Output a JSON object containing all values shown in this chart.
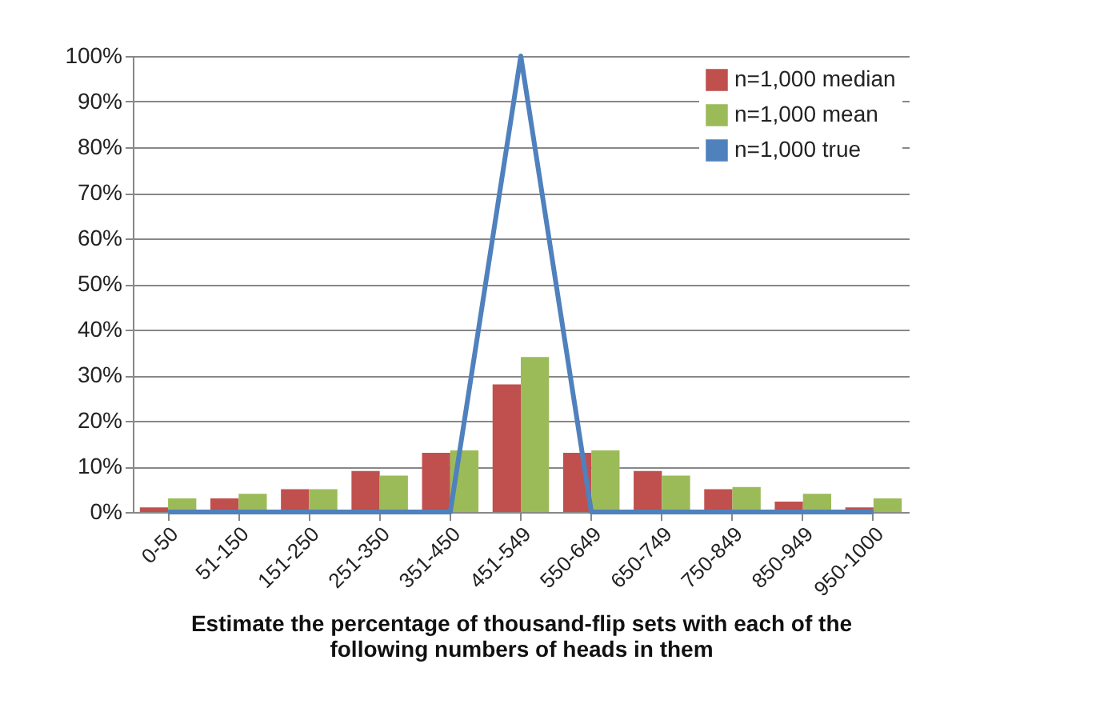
{
  "chart_data": {
    "type": "bar",
    "xlabel": "Estimate the percentage of thousand-flip sets with each of the following numbers of heads in them",
    "categories": [
      "0-50",
      "51-150",
      "151-250",
      "251-350",
      "351-450",
      "451-549",
      "550-649",
      "650-749",
      "750-849",
      "850-949",
      "950-1000"
    ],
    "series": [
      {
        "name": "n=1,000 median",
        "color": "#c0504d",
        "values": [
          1,
          3,
          5,
          9,
          13,
          28,
          13,
          9,
          5,
          2.3,
          1
        ]
      },
      {
        "name": "n=1,000 mean",
        "color": "#9bbb59",
        "values": [
          3,
          4,
          5,
          8,
          13.5,
          34,
          13.5,
          8,
          5.5,
          4,
          3
        ]
      },
      {
        "name": "n=1,000 true",
        "type": "line",
        "color": "#4f81bd",
        "values": [
          0,
          0,
          0,
          0,
          0,
          100,
          0,
          0,
          0,
          0,
          0
        ]
      }
    ],
    "ylim": [
      0,
      100
    ],
    "yticks": [
      {
        "value": 0,
        "label": "0%"
      },
      {
        "value": 10,
        "label": "10%"
      },
      {
        "value": 20,
        "label": "20%"
      },
      {
        "value": 30,
        "label": "30%"
      },
      {
        "value": 40,
        "label": "40%"
      },
      {
        "value": 50,
        "label": "50%"
      },
      {
        "value": 60,
        "label": "60%"
      },
      {
        "value": 70,
        "label": "70%"
      },
      {
        "value": 80,
        "label": "80%"
      },
      {
        "value": 90,
        "label": "90%"
      },
      {
        "value": 100,
        "label": "100%"
      }
    ],
    "grid": "y",
    "legend": "top right",
    "line_style": "solid",
    "marker": "none"
  }
}
